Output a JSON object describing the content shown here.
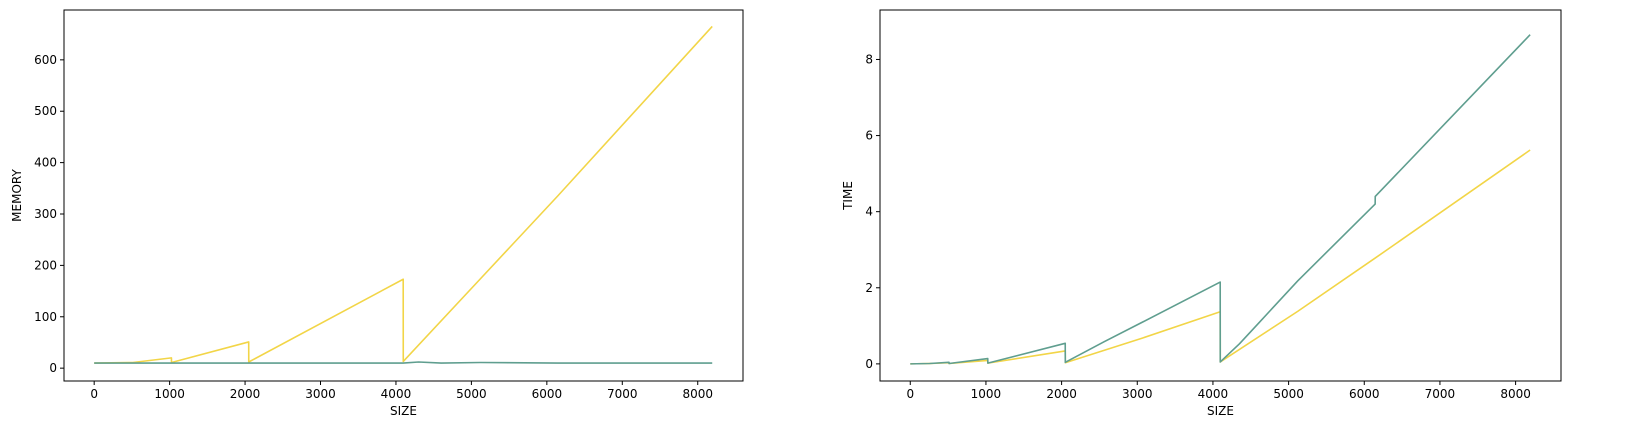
{
  "colors": {
    "yellow": "#f2d547",
    "green": "#5f9e8f",
    "axis": "#000000"
  },
  "chart_data": [
    {
      "type": "line",
      "xlabel": "SIZE",
      "ylabel": "MEMORY",
      "xlim": [
        -400,
        8600
      ],
      "ylim": [
        -25,
        697
      ],
      "xticks": [
        0,
        1000,
        2000,
        3000,
        4000,
        5000,
        6000,
        7000,
        8000
      ],
      "xtick_labels": [
        "0",
        "1000",
        "2000",
        "3000",
        "4000",
        "5000",
        "6000",
        "7000",
        "8000"
      ],
      "yticks": [
        0,
        100,
        200,
        300,
        400,
        500,
        600
      ],
      "ytick_labels": [
        "0",
        "100",
        "200",
        "300",
        "400",
        "500",
        "600"
      ],
      "grid": false,
      "series": [
        {
          "color": "#f2d547",
          "x": [
            0,
            512,
            1024,
            1025,
            2048,
            2049,
            4096,
            4097,
            5120,
            6144,
            8192
          ],
          "y": [
            10,
            11,
            20,
            11,
            51,
            12,
            173,
            13,
            174,
            335,
            665
          ]
        },
        {
          "color": "#5f9e8f",
          "x": [
            0,
            2048,
            4096,
            4300,
            4600,
            5120,
            6144,
            8192
          ],
          "y": [
            10,
            10,
            10,
            12,
            10,
            11,
            10,
            10
          ]
        }
      ]
    },
    {
      "type": "line",
      "xlabel": "SIZE",
      "ylabel": "TIME",
      "xlim": [
        -400,
        8600
      ],
      "ylim": [
        -0.45,
        9.3
      ],
      "xticks": [
        0,
        1000,
        2000,
        3000,
        4000,
        5000,
        6000,
        7000,
        8000
      ],
      "xtick_labels": [
        "0",
        "1000",
        "2000",
        "3000",
        "4000",
        "5000",
        "6000",
        "7000",
        "8000"
      ],
      "yticks": [
        0,
        2,
        4,
        6,
        8
      ],
      "ytick_labels": [
        "0",
        "2",
        "4",
        "6",
        "8"
      ],
      "grid": false,
      "series": [
        {
          "color": "#f2d547",
          "x": [
            0,
            256,
            512,
            513,
            1024,
            1025,
            2048,
            2049,
            3072,
            4096,
            4097,
            5120,
            6144,
            8192
          ],
          "y": [
            0,
            0.01,
            0.03,
            0.01,
            0.09,
            0.02,
            0.34,
            0.03,
            0.68,
            1.37,
            0.05,
            1.38,
            2.78,
            5.62
          ]
        },
        {
          "color": "#5f9e8f",
          "x": [
            0,
            256,
            512,
            513,
            1024,
            1025,
            2048,
            2049,
            2560,
            3072,
            4096,
            4097,
            4352,
            4608,
            5120,
            6144,
            6145,
            8192
          ],
          "y": [
            0,
            0.01,
            0.04,
            0.01,
            0.14,
            0.02,
            0.54,
            0.04,
            0.58,
            1.1,
            2.15,
            0.05,
            0.53,
            1.08,
            2.18,
            4.2,
            4.4,
            8.65
          ]
        }
      ]
    }
  ]
}
